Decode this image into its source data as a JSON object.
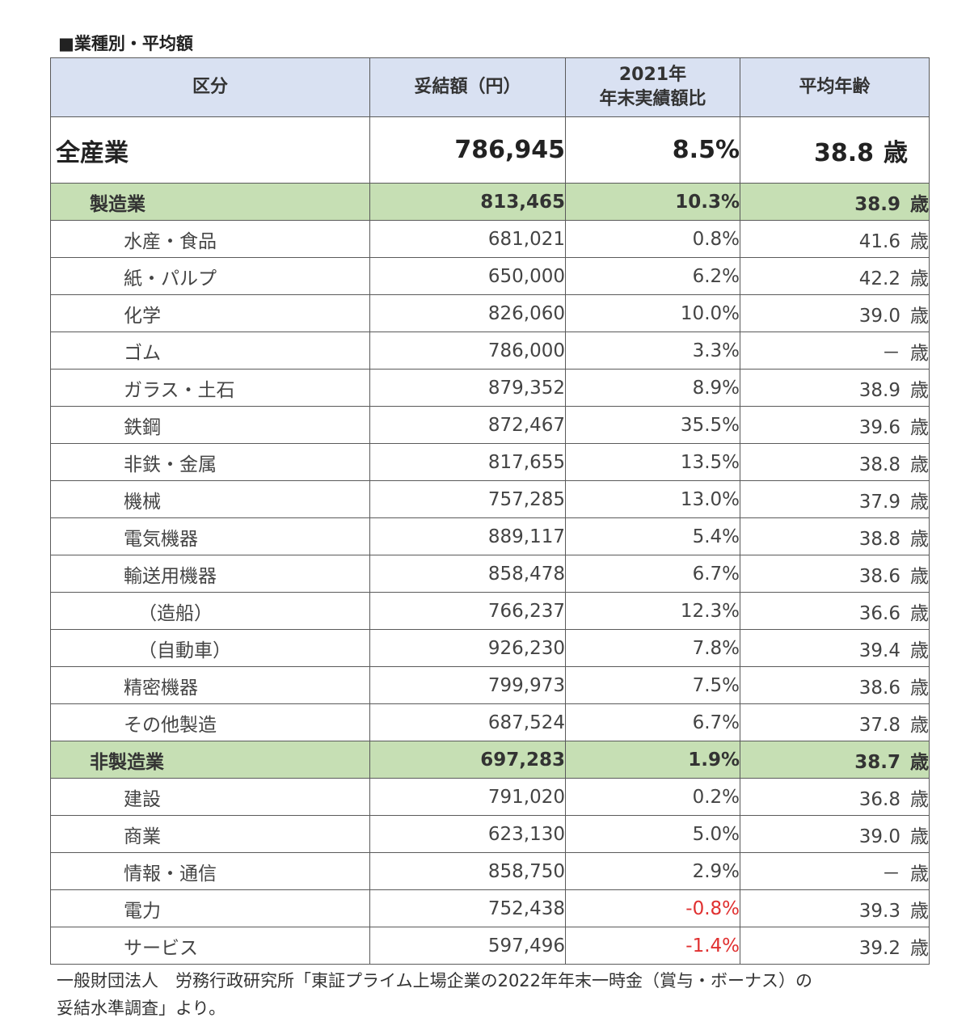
{
  "caption": "■業種別・平均額",
  "headers": {
    "category": "区分",
    "amount": "妥結額（円）",
    "ratio_line1": "2021年",
    "ratio_line2": "年末実績額比",
    "age": "平均年齢"
  },
  "age_unit": "歳",
  "total": {
    "label": "全産業",
    "amount": "786,945",
    "ratio": "8.5%",
    "age": "38.8"
  },
  "manufacturing": {
    "label": "製造業",
    "amount": "813,465",
    "ratio": "10.3%",
    "age": "38.9",
    "rows": [
      {
        "label": "水産・食品",
        "amount": "681,021",
        "ratio": "0.8%",
        "age": "41.6"
      },
      {
        "label": "紙・パルプ",
        "amount": "650,000",
        "ratio": "6.2%",
        "age": "42.2"
      },
      {
        "label": "化学",
        "amount": "826,060",
        "ratio": "10.0%",
        "age": "39.0"
      },
      {
        "label": "ゴム",
        "amount": "786,000",
        "ratio": "3.3%",
        "age": "－"
      },
      {
        "label": "ガラス・土石",
        "amount": "879,352",
        "ratio": "8.9%",
        "age": "38.9"
      },
      {
        "label": "鉄鋼",
        "amount": "872,467",
        "ratio": "35.5%",
        "age": "39.6"
      },
      {
        "label": "非鉄・金属",
        "amount": "817,655",
        "ratio": "13.5%",
        "age": "38.8"
      },
      {
        "label": "機械",
        "amount": "757,285",
        "ratio": "13.0%",
        "age": "37.9"
      },
      {
        "label": "電気機器",
        "amount": "889,117",
        "ratio": "5.4%",
        "age": "38.8"
      },
      {
        "label": "輸送用機器",
        "amount": "858,478",
        "ratio": "6.7%",
        "age": "38.6"
      },
      {
        "label": "（造船）",
        "amount": "766,237",
        "ratio": "12.3%",
        "age": "36.6"
      },
      {
        "label": "（自動車）",
        "amount": "926,230",
        "ratio": "7.8%",
        "age": "39.4"
      },
      {
        "label": "精密機器",
        "amount": "799,973",
        "ratio": "7.5%",
        "age": "38.6"
      },
      {
        "label": "その他製造",
        "amount": "687,524",
        "ratio": "6.7%",
        "age": "37.8"
      }
    ]
  },
  "non_manufacturing": {
    "label": "非製造業",
    "amount": "697,283",
    "ratio": "1.9%",
    "age": "38.7",
    "rows": [
      {
        "label": "建設",
        "amount": "791,020",
        "ratio": "0.2%",
        "age": "36.8"
      },
      {
        "label": "商業",
        "amount": "623,130",
        "ratio": "5.0%",
        "age": "39.0"
      },
      {
        "label": "情報・通信",
        "amount": "858,750",
        "ratio": "2.9%",
        "age": "－"
      },
      {
        "label": "電力",
        "amount": "752,438",
        "ratio": "-0.8%",
        "age": "39.3"
      },
      {
        "label": "サービス",
        "amount": "597,496",
        "ratio": "-1.4%",
        "age": "39.2"
      }
    ]
  },
  "negative_color": "#e03030",
  "header_color": "#d9e1f2",
  "group_color": "#c6dfb4",
  "source_line1": "一般財団法人　労務行政研究所「東証プライム上場企業の2022年年末一時金（賞与・ボーナス）の",
  "source_line2": "妥結水準調査」より。"
}
